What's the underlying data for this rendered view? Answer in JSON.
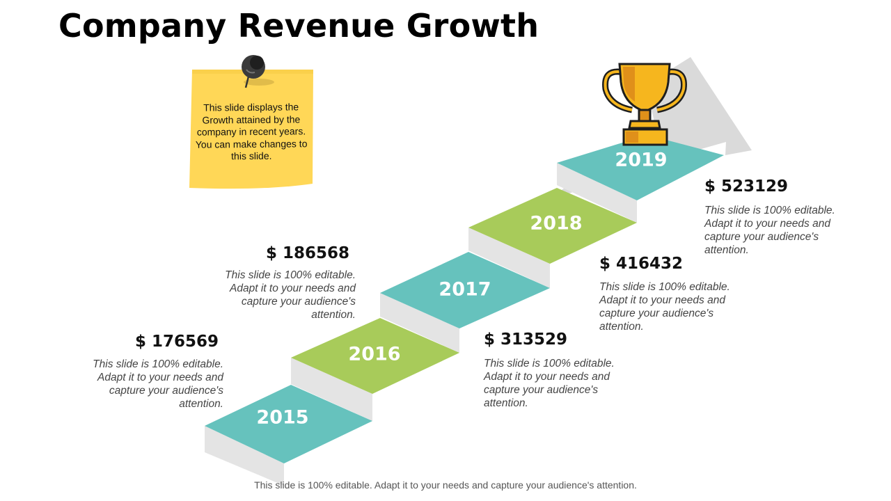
{
  "title": "Company Revenue Growth",
  "note": "This slide displays the Growth attained by the company in recent years. You can make changes to this slide.",
  "steps": [
    {
      "year": "2015",
      "amount": "$ 176569",
      "desc": "This slide is 100% editable. Adapt it to your needs and capture your audience's attention.",
      "color": "#66c2bd"
    },
    {
      "year": "2016",
      "amount": "$ 186568",
      "desc": "This slide is 100% editable. Adapt it to your needs and capture your audience's attention.",
      "color": "#a8cb5a"
    },
    {
      "year": "2017",
      "amount": "$ 313529",
      "desc": "This slide is 100% editable. Adapt it to your needs and capture your audience's attention.",
      "color": "#66c2bd"
    },
    {
      "year": "2018",
      "amount": "$ 416432",
      "desc": "This slide is 100% editable. Adapt it to your needs and capture your audience's attention.",
      "color": "#a8cb5a"
    },
    {
      "year": "2019",
      "amount": "$ 523129",
      "desc": "This slide is 100% editable. Adapt it to your needs and capture your audience's attention.",
      "color": "#66c2bd"
    }
  ],
  "footer": "This slide is 100% editable.  Adapt it to your needs and capture your audience's attention.",
  "colors": {
    "teal": "#66c2bd",
    "green": "#a8cb5a",
    "riser": "#e3e3e3",
    "arrow": "#d9d9d9",
    "note": "#ffd757",
    "trophy": "#f6b61e"
  }
}
